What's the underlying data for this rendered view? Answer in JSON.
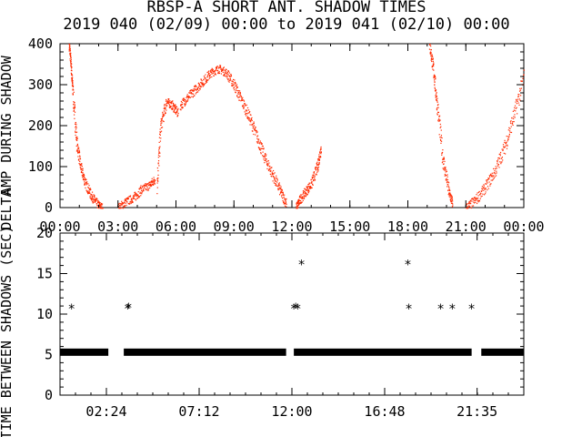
{
  "title": "RBSP-A SHORT ANT. SHADOW TIMES",
  "subtitle": "2019 040 (02/09) 00:00 to 2019 041 (02/10) 00:00",
  "colors": {
    "top_series": "#ff2a00",
    "axes": "#000000",
    "bottom_series": "#000000"
  },
  "chart_data": [
    {
      "type": "scatter",
      "ylabel": "AMP DURING SHADOW",
      "ylabel_prefix": "DELTA",
      "xlim": [
        "00:00",
        "24:00"
      ],
      "ylim": [
        0,
        400
      ],
      "xticks": [
        "00:00",
        "03:00",
        "06:00",
        "09:00",
        "12:00",
        "15:00",
        "18:00",
        "21:00",
        "00:00"
      ],
      "yticks": [
        "0",
        "100",
        "200",
        "300",
        "400"
      ],
      "grid": false,
      "series": [
        {
          "color": "#ff2a00",
          "segments": [
            {
              "x": [
                0.45,
                0.55,
                0.65,
                0.85,
                1.05,
                1.3,
                1.6,
                1.9,
                2.2
              ],
              "y": [
                400,
                350,
                280,
                160,
                100,
                60,
                30,
                10,
                0
              ]
            },
            {
              "x": [
                3.0,
                3.4,
                3.8,
                4.2,
                4.6,
                4.9
              ],
              "y": [
                0,
                15,
                25,
                45,
                55,
                70
              ]
            },
            {
              "x": [
                5.0,
                5.2,
                5.5,
                5.8,
                6.1
              ],
              "y": [
                60,
                200,
                260,
                250,
                230
              ]
            },
            {
              "x": [
                6.2,
                6.6,
                7.0,
                7.4,
                7.8,
                8.2,
                8.6,
                9.0,
                9.4,
                9.8,
                10.2,
                10.6,
                11.0,
                11.4,
                11.7
              ],
              "y": [
                250,
                270,
                290,
                310,
                330,
                340,
                330,
                300,
                260,
                220,
                170,
                120,
                80,
                40,
                10
              ]
            },
            {
              "x": [
                12.2,
                12.4,
                12.7,
                13.0,
                13.3,
                13.5
              ],
              "y": [
                0,
                20,
                40,
                60,
                100,
                150
              ]
            },
            {
              "x": [
                19.1,
                19.3,
                19.5,
                19.8,
                20.1,
                20.3
              ],
              "y": [
                400,
                340,
                250,
                120,
                40,
                10
              ]
            },
            {
              "x": [
                21.0,
                21.5,
                22.0,
                22.5,
                23.0,
                23.5,
                24.0
              ],
              "y": [
                0,
                20,
                50,
                90,
                150,
                230,
                320
              ]
            }
          ]
        }
      ]
    },
    {
      "type": "scatter",
      "ylabel": "TIME BETWEEN SHADOWS (SEC)",
      "xlim": [
        "00:00",
        "24:00"
      ],
      "ylim": [
        0,
        20
      ],
      "xticks": [
        "02:24",
        "07:12",
        "12:00",
        "16:48",
        "21:35"
      ],
      "yticks": [
        "0",
        "5",
        "10",
        "15",
        "20"
      ],
      "grid": false,
      "marker": "asterisk",
      "series": [
        {
          "color": "#000000",
          "baseline_value": 5.3,
          "baseline_ranges": [
            [
              0.0,
              2.5
            ],
            [
              3.3,
              11.7
            ],
            [
              12.1,
              21.3
            ],
            [
              21.8,
              24.0
            ]
          ],
          "outliers": {
            "x": [
              0.6,
              3.5,
              3.55,
              12.1,
              12.2,
              12.3,
              12.5,
              18.0,
              18.05,
              19.7,
              20.3,
              21.3
            ],
            "y": [
              10.7,
              10.7,
              10.8,
              10.7,
              10.8,
              10.7,
              16.1,
              16.1,
              10.7,
              10.7,
              10.7,
              10.7
            ]
          }
        }
      ]
    }
  ]
}
